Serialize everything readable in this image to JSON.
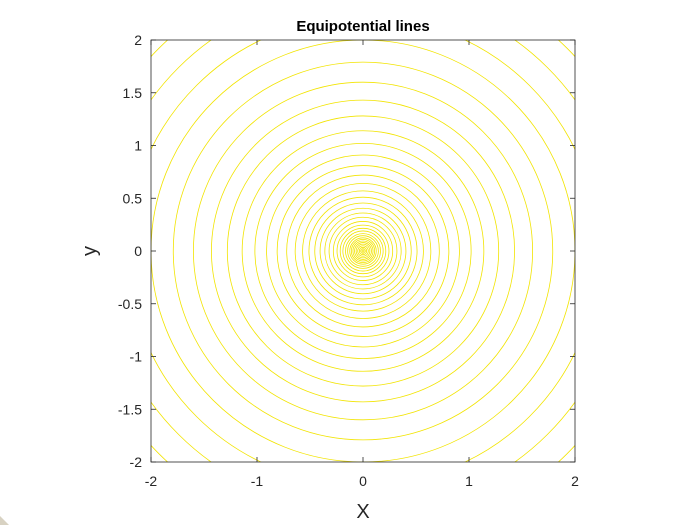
{
  "figure": {
    "background": "#ffffff",
    "axes_color": "#262626",
    "corner_mark_color": "#d8d2c2"
  },
  "chart_data": {
    "type": "contour",
    "title": "Equipotential lines",
    "xlabel": "X",
    "ylabel": "y",
    "xlim": [
      -2,
      2
    ],
    "ylim": [
      -2,
      2
    ],
    "xticks": [
      -2,
      -1,
      0,
      1,
      2
    ],
    "yticks": [
      -2,
      -1.5,
      -1,
      -0.5,
      0,
      0.5,
      1,
      1.5,
      2
    ],
    "xtick_labels": [
      "-2",
      "-1",
      "0",
      "1",
      "2"
    ],
    "ytick_labels": [
      "-2",
      "-1.5",
      "-1",
      "-0.5",
      "0",
      "0.5",
      "1",
      "1.5",
      "2"
    ],
    "center": [
      0,
      0
    ],
    "line_color": "#f2e400",
    "grid": false,
    "box": true,
    "contour_radii": [
      0.01,
      0.022,
      0.035,
      0.05,
      0.065,
      0.08,
      0.095,
      0.11,
      0.125,
      0.145,
      0.165,
      0.19,
      0.215,
      0.245,
      0.28,
      0.32,
      0.36,
      0.405,
      0.455,
      0.51,
      0.57,
      0.64,
      0.72,
      0.81,
      0.91,
      1.02,
      1.14,
      1.28,
      1.43,
      1.6,
      1.79,
      2.0,
      2.22,
      2.46,
      2.72
    ]
  }
}
